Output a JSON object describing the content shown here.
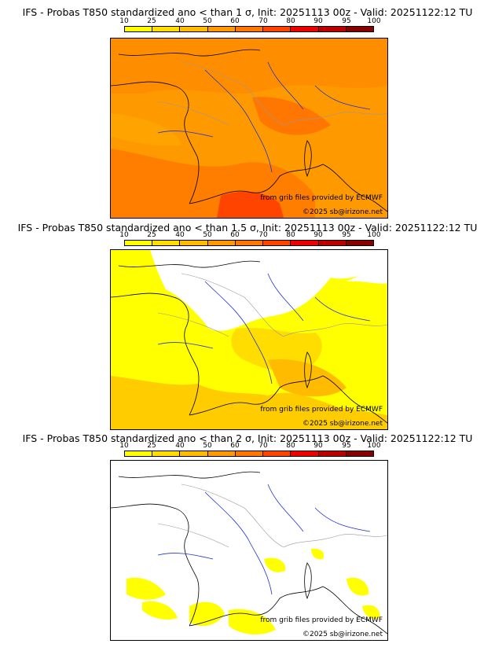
{
  "scale": {
    "ticks": [
      "10",
      "25",
      "40",
      "50",
      "60",
      "70",
      "80",
      "90",
      "95",
      "100"
    ],
    "colors": [
      "#ffff00",
      "#ffdd00",
      "#ffbb00",
      "#ff9900",
      "#ff7700",
      "#ff4400",
      "#ee0000",
      "#bb0000",
      "#880000"
    ]
  },
  "panels": [
    {
      "title": "IFS - Probas T850  standardized ano < than 1 σ, Init: 20251113 00z - Valid: 20251122:12 TU",
      "credit_source": "from grib files provided by ECMWF",
      "credit_copyright": "©2025 sb@irizone.net"
    },
    {
      "title": "IFS - Probas T850  standardized ano < than 1.5 σ, Init: 20251113 00z - Valid: 20251122:12 TU",
      "credit_source": "from grib files provided by ECMWF",
      "credit_copyright": "©2025 sb@irizone.net"
    },
    {
      "title": "IFS - Probas T850  standardized ano < than 2 σ, Init: 20251113 00z - Valid: 20251122:12 TU",
      "credit_source": "from grib files provided by ECMWF",
      "credit_copyright": "©2025 sb@irizone.net"
    }
  ],
  "map_colors": {
    "coast": "#000000",
    "rivers": "#2233cc",
    "borders": "#999999"
  }
}
